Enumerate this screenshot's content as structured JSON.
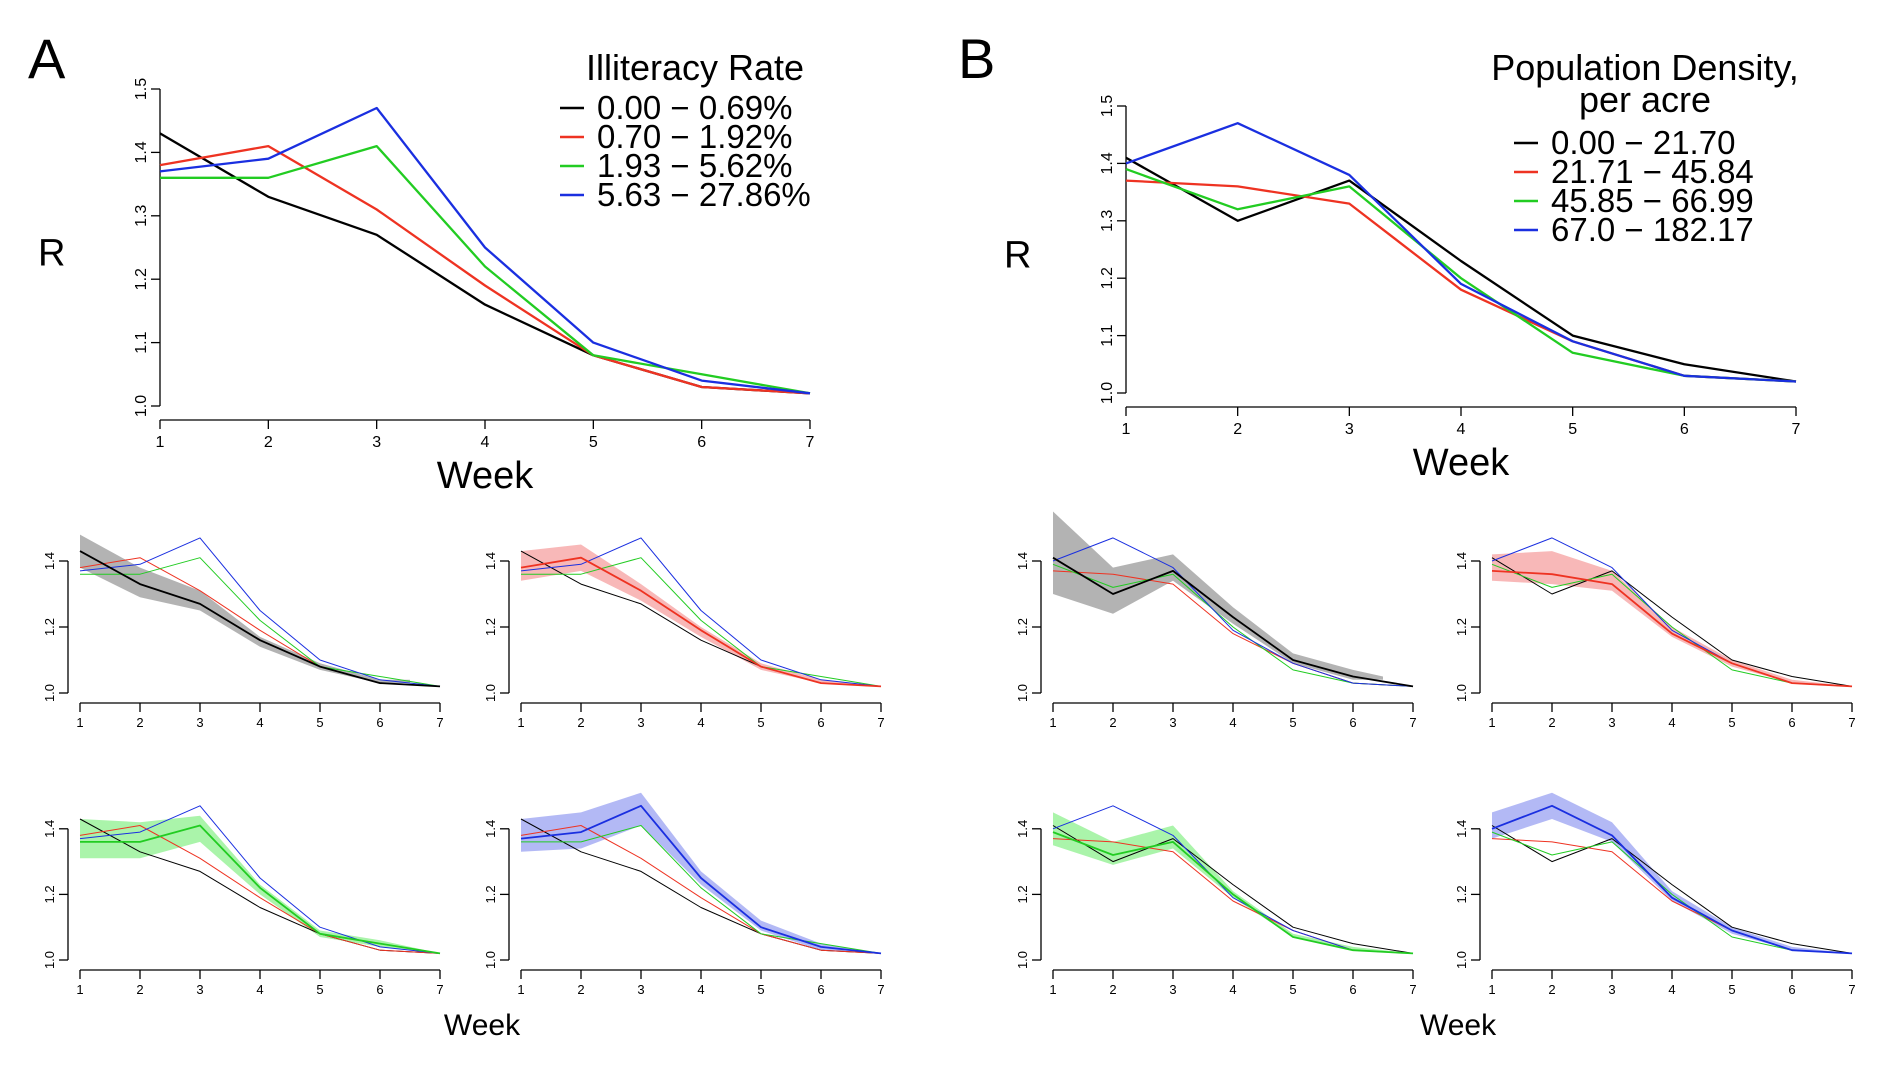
{
  "panels": [
    {
      "label": "A",
      "legend_title": "Illiteracy Rate"
    },
    {
      "label": "B",
      "legend_title_lines": [
        "Population Density,",
        "per acre"
      ]
    }
  ],
  "colors": [
    "#000000",
    "#ee3322",
    "#22cc22",
    "#1a2fe0"
  ],
  "chart_data": [
    {
      "type": "line",
      "panel": "A",
      "title": "",
      "ylabel": "R",
      "xlabel": "Week",
      "x": [
        1,
        2,
        3,
        4,
        5,
        6,
        7
      ],
      "ylim": [
        1.0,
        1.5
      ],
      "yticks": [
        "1.0",
        "1.1",
        "1.2",
        "1.3",
        "1.4",
        "1.5"
      ],
      "legend_placement": "top-right",
      "series": [
        {
          "name": "0.00 − 0.69%",
          "values": [
            1.43,
            1.33,
            1.27,
            1.16,
            1.08,
            1.03,
            1.02
          ]
        },
        {
          "name": "0.70 − 1.92%",
          "values": [
            1.38,
            1.41,
            1.31,
            1.19,
            1.08,
            1.03,
            1.02
          ]
        },
        {
          "name": "1.93 − 5.62%",
          "values": [
            1.36,
            1.36,
            1.41,
            1.22,
            1.08,
            1.05,
            1.02
          ]
        },
        {
          "name": "5.63 − 27.86%",
          "values": [
            1.37,
            1.39,
            1.47,
            1.25,
            1.1,
            1.04,
            1.02
          ]
        }
      ]
    },
    {
      "type": "line",
      "panel": "B",
      "title": "",
      "ylabel": "R",
      "xlabel": "Week",
      "x": [
        1,
        2,
        3,
        4,
        5,
        6,
        7
      ],
      "ylim": [
        1.0,
        1.5
      ],
      "yticks": [
        "1.0",
        "1.1",
        "1.2",
        "1.3",
        "1.4",
        "1.5"
      ],
      "legend_placement": "top-right",
      "series": [
        {
          "name": "0.00 − 21.70",
          "values": [
            1.41,
            1.3,
            1.37,
            1.23,
            1.1,
            1.05,
            1.02
          ]
        },
        {
          "name": "21.71 − 45.84",
          "values": [
            1.37,
            1.36,
            1.33,
            1.18,
            1.09,
            1.03,
            1.02
          ]
        },
        {
          "name": "45.85 − 66.99",
          "values": [
            1.39,
            1.32,
            1.36,
            1.2,
            1.07,
            1.03,
            1.02
          ]
        },
        {
          "name": "67.0 − 182.17",
          "values": [
            1.4,
            1.47,
            1.38,
            1.19,
            1.09,
            1.03,
            1.02
          ]
        }
      ]
    },
    {
      "type": "area",
      "panel": "A-small",
      "xlabel": "Week",
      "x": [
        1,
        2,
        3,
        4,
        5,
        6,
        7
      ],
      "ylim": [
        1.0,
        1.5
      ],
      "yticks": [
        "1.0",
        "1.2",
        "1.4"
      ],
      "series_lines": [
        [
          1.43,
          1.33,
          1.27,
          1.16,
          1.08,
          1.03,
          1.02
        ],
        [
          1.38,
          1.41,
          1.31,
          1.19,
          1.08,
          1.03,
          1.02
        ],
        [
          1.36,
          1.36,
          1.41,
          1.22,
          1.08,
          1.05,
          1.02
        ],
        [
          1.37,
          1.39,
          1.47,
          1.25,
          1.1,
          1.04,
          1.02
        ]
      ],
      "bands": [
        {
          "x": [
            1,
            2,
            3,
            4,
            5,
            6,
            6.5
          ],
          "lower": [
            1.38,
            1.29,
            1.25,
            1.14,
            1.07,
            1.03,
            1.03
          ],
          "upper": [
            1.48,
            1.38,
            1.31,
            1.17,
            1.09,
            1.04,
            1.04
          ]
        },
        {
          "x": [
            1,
            2,
            3,
            4,
            5,
            6,
            7
          ],
          "lower": [
            1.34,
            1.37,
            1.28,
            1.17,
            1.07,
            1.03,
            1.02
          ],
          "upper": [
            1.43,
            1.45,
            1.33,
            1.2,
            1.09,
            1.04,
            1.02
          ]
        },
        {
          "x": [
            1,
            2,
            3,
            4,
            5,
            6,
            7
          ],
          "lower": [
            1.31,
            1.31,
            1.36,
            1.2,
            1.07,
            1.04,
            1.02
          ],
          "upper": [
            1.43,
            1.42,
            1.44,
            1.23,
            1.09,
            1.06,
            1.02
          ]
        },
        {
          "x": [
            1,
            2,
            3,
            4,
            5,
            6,
            7
          ],
          "lower": [
            1.33,
            1.34,
            1.41,
            1.23,
            1.09,
            1.03,
            1.02
          ],
          "upper": [
            1.43,
            1.45,
            1.51,
            1.27,
            1.12,
            1.05,
            1.02
          ]
        }
      ]
    },
    {
      "type": "area",
      "panel": "B-small",
      "xlabel": "Week",
      "x": [
        1,
        2,
        3,
        4,
        5,
        6,
        7
      ],
      "ylim": [
        1.0,
        1.5
      ],
      "yticks": [
        "1.0",
        "1.2",
        "1.4"
      ],
      "series_lines": [
        [
          1.41,
          1.3,
          1.37,
          1.23,
          1.1,
          1.05,
          1.02
        ],
        [
          1.37,
          1.36,
          1.33,
          1.18,
          1.09,
          1.03,
          1.02
        ],
        [
          1.39,
          1.32,
          1.36,
          1.2,
          1.07,
          1.03,
          1.02
        ],
        [
          1.4,
          1.47,
          1.38,
          1.19,
          1.09,
          1.03,
          1.02
        ]
      ],
      "bands": [
        {
          "x": [
            1,
            2,
            3,
            4,
            5,
            6,
            6.5
          ],
          "lower": [
            1.3,
            1.24,
            1.34,
            1.21,
            1.09,
            1.04,
            1.04
          ],
          "upper": [
            1.55,
            1.38,
            1.42,
            1.26,
            1.12,
            1.07,
            1.05
          ]
        },
        {
          "x": [
            1,
            2,
            3,
            4,
            5,
            6,
            7
          ],
          "lower": [
            1.34,
            1.33,
            1.31,
            1.17,
            1.08,
            1.03,
            1.02
          ],
          "upper": [
            1.42,
            1.43,
            1.37,
            1.2,
            1.1,
            1.04,
            1.02
          ]
        },
        {
          "x": [
            1,
            2,
            3,
            4,
            5,
            6,
            7
          ],
          "lower": [
            1.35,
            1.29,
            1.34,
            1.19,
            1.07,
            1.03,
            1.02
          ],
          "upper": [
            1.45,
            1.36,
            1.41,
            1.21,
            1.08,
            1.04,
            1.02
          ]
        },
        {
          "x": [
            1,
            2,
            3,
            4,
            5,
            6,
            7
          ],
          "lower": [
            1.37,
            1.43,
            1.36,
            1.18,
            1.08,
            1.03,
            1.02
          ],
          "upper": [
            1.45,
            1.51,
            1.42,
            1.21,
            1.1,
            1.04,
            1.02
          ]
        }
      ]
    }
  ]
}
